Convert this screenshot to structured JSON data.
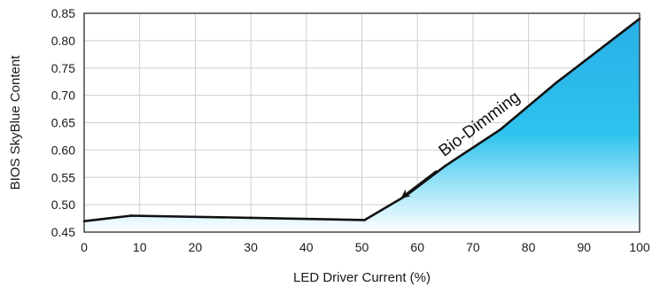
{
  "chart_data": {
    "type": "area",
    "xlabel": "LED Driver Current (%)",
    "ylabel": "BIOS SkyBlue Content",
    "xlim": [
      0,
      100
    ],
    "ylim": [
      0.45,
      0.85
    ],
    "xticks": [
      0,
      10,
      20,
      30,
      40,
      50,
      60,
      70,
      80,
      90,
      100
    ],
    "yticks": [
      0.45,
      0.5,
      0.55,
      0.6,
      0.65,
      0.7,
      0.75,
      0.8,
      0.85
    ],
    "grid": true,
    "series": [
      {
        "values": [
          {
            "x": 0,
            "y": 0.47
          },
          {
            "x": 8.5,
            "y": 0.48
          },
          {
            "x": 30,
            "y": 0.476
          },
          {
            "x": 50.5,
            "y": 0.472
          },
          {
            "x": 58,
            "y": 0.517
          },
          {
            "x": 65,
            "y": 0.571
          },
          {
            "x": 75,
            "y": 0.638
          },
          {
            "x": 85,
            "y": 0.723
          },
          {
            "x": 100,
            "y": 0.84
          }
        ]
      }
    ],
    "annotation": {
      "text": "Bio-Dimming",
      "arrow_from": [
        63.5,
        0.562
      ],
      "arrow_to": [
        57.3,
        0.514
      ]
    },
    "colors": {
      "line": "#111111",
      "fill_top": "#2bbde9",
      "fill_bottom": "#ffffff",
      "grid": "#cfcfcf",
      "frame": "#2a2a2a"
    }
  }
}
